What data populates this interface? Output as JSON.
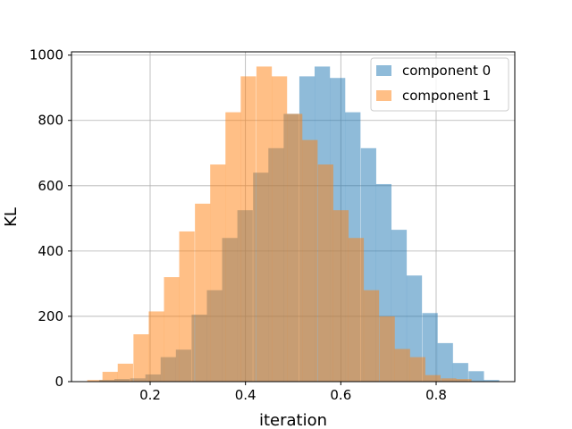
{
  "chart_data": {
    "type": "bar",
    "subtype": "overlapping-histogram",
    "title": "",
    "xlabel": "iteration",
    "ylabel": "KL",
    "xlim": [
      0.035,
      0.965
    ],
    "ylim": [
      0,
      1010
    ],
    "xticks": [
      0.2,
      0.4,
      0.6,
      0.8
    ],
    "xtick_labels": [
      "0.2",
      "0.4",
      "0.6",
      "0.8"
    ],
    "yticks": [
      0,
      200,
      400,
      600,
      800,
      1000
    ],
    "ytick_labels": [
      "0",
      "200",
      "400",
      "600",
      "800",
      "1000"
    ],
    "grid": true,
    "legend_position": "top-right",
    "series": [
      {
        "name": "component 0",
        "color": "#1f77b4",
        "alpha": 0.5,
        "bin_width": 0.0323,
        "bin_starts": [
          0.093,
          0.125,
          0.158,
          0.19,
          0.222,
          0.254,
          0.287,
          0.319,
          0.351,
          0.383,
          0.416,
          0.448,
          0.48,
          0.513,
          0.545,
          0.577,
          0.609,
          0.642,
          0.674,
          0.706,
          0.738,
          0.771,
          0.803,
          0.835,
          0.868,
          0.9
        ],
        "values": [
          5,
          8,
          10,
          22,
          75,
          98,
          205,
          280,
          440,
          525,
          640,
          715,
          820,
          935,
          965,
          930,
          825,
          715,
          605,
          465,
          325,
          210,
          118,
          57,
          32,
          5
        ]
      },
      {
        "name": "component 1",
        "color": "#ff7f0e",
        "alpha": 0.5,
        "bin_width": 0.0323,
        "bin_starts": [
          0.068,
          0.1,
          0.132,
          0.165,
          0.197,
          0.229,
          0.261,
          0.294,
          0.326,
          0.358,
          0.39,
          0.423,
          0.455,
          0.487,
          0.519,
          0.552,
          0.584,
          0.616,
          0.648,
          0.681,
          0.713,
          0.745,
          0.777,
          0.81,
          0.842
        ],
        "values": [
          5,
          30,
          55,
          145,
          215,
          320,
          460,
          545,
          665,
          825,
          935,
          965,
          935,
          820,
          740,
          665,
          525,
          440,
          280,
          200,
          100,
          75,
          20,
          10,
          8
        ]
      }
    ]
  }
}
